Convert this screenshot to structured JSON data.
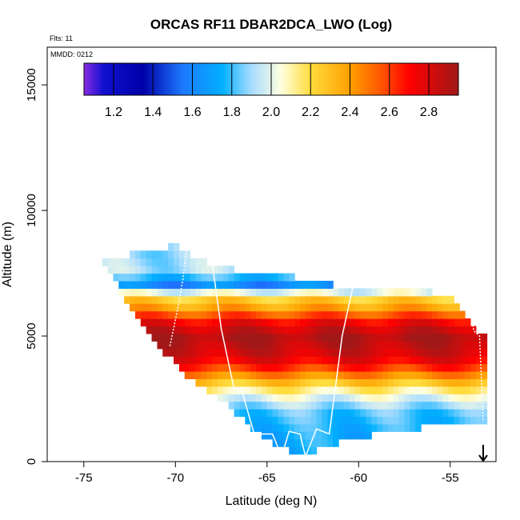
{
  "chart_data": {
    "type": "heatmap",
    "title": "ORCAS RF11 DBAR2DCA_LWO (Log)",
    "flights_label": "Flts: 11",
    "date_label": "MMDD: 0212",
    "xlabel": "Latitude (deg N)",
    "ylabel": "Altitude (m)",
    "xlim": [
      -77,
      -52.5
    ],
    "ylim": [
      0,
      16500
    ],
    "x_ticks": [
      -75,
      -70,
      -65,
      -60,
      -55
    ],
    "x_tick_labels": [
      "-75",
      "-70",
      "-65",
      "-60",
      "-55"
    ],
    "y_ticks": [
      0,
      5000,
      10000,
      15000
    ],
    "y_tick_labels": [
      "0",
      "5000",
      "10000",
      "15000"
    ],
    "colorbar": {
      "range": [
        1.05,
        2.95
      ],
      "ticks": [
        1.2,
        1.4,
        1.6,
        1.8,
        2.0,
        2.2,
        2.4,
        2.6,
        2.8
      ],
      "tick_labels": [
        "1.2",
        "1.4",
        "1.6",
        "1.8",
        "2.0",
        "2.2",
        "2.4",
        "2.6",
        "2.8"
      ],
      "stops": [
        {
          "v": 1.05,
          "c": "#8a2be2"
        },
        {
          "v": 1.15,
          "c": "#1010d0"
        },
        {
          "v": 1.35,
          "c": "#0000a8"
        },
        {
          "v": 1.55,
          "c": "#1e78ff"
        },
        {
          "v": 1.75,
          "c": "#00b0ff"
        },
        {
          "v": 1.9,
          "c": "#a8dcff"
        },
        {
          "v": 2.05,
          "c": "#ffffe0"
        },
        {
          "v": 2.2,
          "c": "#ffdc3c"
        },
        {
          "v": 2.4,
          "c": "#ffa000"
        },
        {
          "v": 2.55,
          "c": "#ff5a00"
        },
        {
          "v": 2.7,
          "c": "#ff0000"
        },
        {
          "v": 2.95,
          "c": "#a01818"
        }
      ]
    },
    "section": {
      "lat_range": [
        -74,
        -53.2
      ],
      "top_altitude": [
        [
          -74,
          8000
        ],
        [
          -71.5,
          8400
        ],
        [
          -70,
          8600
        ],
        [
          -68,
          7800
        ],
        [
          -66.5,
          7600
        ],
        [
          -63,
          7300
        ],
        [
          -61,
          7000
        ],
        [
          -59,
          6900
        ],
        [
          -57,
          6800
        ],
        [
          -55,
          6700
        ],
        [
          -53.2,
          5000
        ]
      ],
      "bottom_altitude": [
        [
          -74,
          8000
        ],
        [
          -73,
          6800
        ],
        [
          -71,
          4600
        ],
        [
          -69,
          3200
        ],
        [
          -67,
          2200
        ],
        [
          -65.5,
          1100
        ],
        [
          -64,
          500
        ],
        [
          -63,
          200
        ],
        [
          -61.5,
          700
        ],
        [
          -59,
          1100
        ],
        [
          -57,
          1300
        ],
        [
          -55,
          1500
        ],
        [
          -53.2,
          1600
        ]
      ]
    },
    "layers": [
      {
        "altitude": 0,
        "value": 1.7
      },
      {
        "altitude": 1200,
        "value": 1.75
      },
      {
        "altitude": 2000,
        "value": 1.82
      },
      {
        "altitude": 2700,
        "value": 2.05
      },
      {
        "altitude": 3200,
        "value": 2.3
      },
      {
        "altitude": 3800,
        "value": 2.65
      },
      {
        "altitude": 4200,
        "value": 2.8
      },
      {
        "altitude": 5000,
        "value": 2.92
      },
      {
        "altitude": 5600,
        "value": 2.72
      },
      {
        "altitude": 6100,
        "value": 2.4
      },
      {
        "altitude": 6600,
        "value": 2.2
      },
      {
        "altitude": 7100,
        "value": 1.55
      },
      {
        "altitude": 7500,
        "value": 1.92
      },
      {
        "altitude": 8200,
        "value": 1.9
      }
    ],
    "flight_tracks": [
      {
        "points": [
          [
            -70.3,
            4600
          ],
          [
            -69.9,
            6000
          ],
          [
            -69.6,
            7200
          ],
          [
            -69.4,
            8500
          ]
        ],
        "style": "dotted"
      },
      {
        "points": [
          [
            -68.1,
            8500
          ],
          [
            -67.5,
            5300
          ],
          [
            -66.8,
            2900
          ],
          [
            -66.4,
            2900
          ],
          [
            -65.7,
            1100
          ],
          [
            -64.7,
            1100
          ],
          [
            -64.2,
            200
          ],
          [
            -63.8,
            1200
          ],
          [
            -63.2,
            1100
          ],
          [
            -62.9,
            200
          ],
          [
            -62.3,
            1300
          ],
          [
            -61.6,
            1100
          ],
          [
            -60.9,
            5000
          ],
          [
            -60.3,
            7000
          ]
        ],
        "style": "solid"
      },
      {
        "points": [
          [
            -54.2,
            6800
          ],
          [
            -53.7,
            5200
          ],
          [
            -53.4,
            5000
          ],
          [
            -53.2,
            1600
          ]
        ],
        "style": "dotted"
      }
    ],
    "end_marker": {
      "lat": -53.2,
      "altitude": 0,
      "symbol": "arrow-down"
    }
  }
}
